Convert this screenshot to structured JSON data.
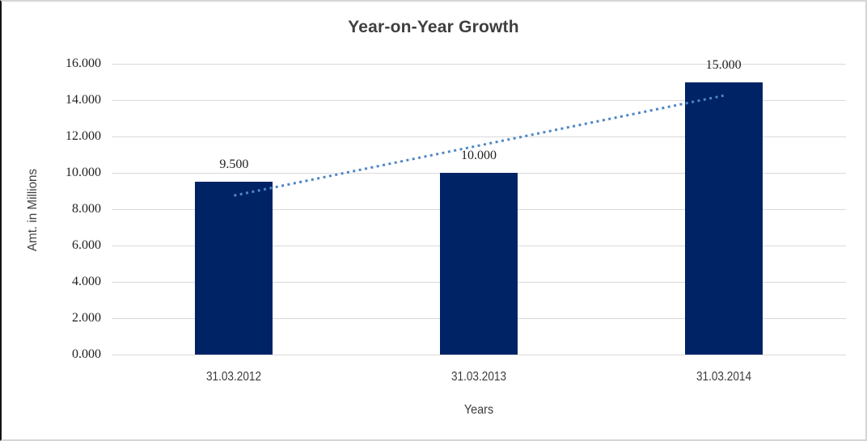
{
  "chart_data": {
    "type": "bar",
    "title": "Year-on-Year Growth",
    "xlabel": "Years",
    "ylabel": "Amt. in Millions",
    "categories": [
      "31.03.2012",
      "31.03.2013",
      "31.03.2014"
    ],
    "values": [
      9.5,
      10.0,
      15.0
    ],
    "value_labels": [
      "9.500",
      "10.000",
      "15.000"
    ],
    "ylim": [
      0,
      16
    ],
    "ytick_step": 2,
    "ytick_labels": [
      "0.000",
      "2.000",
      "4.000",
      "6.000",
      "8.000",
      "10.000",
      "12.000",
      "14.000",
      "16.000"
    ],
    "grid": true,
    "legend": "none",
    "trendline": {
      "type": "linear",
      "style": "dotted",
      "color": "#4e86c6"
    },
    "colors": {
      "bar": "#002366",
      "gridline": "#d9d9d9",
      "title_text": "#3f3f3f",
      "number_text": "#1f1f1f",
      "axis_text": "#3a3a3a",
      "frame_border": "#d5d5d5",
      "frame_left_border": "#141414",
      "background": "#ffffff"
    }
  }
}
